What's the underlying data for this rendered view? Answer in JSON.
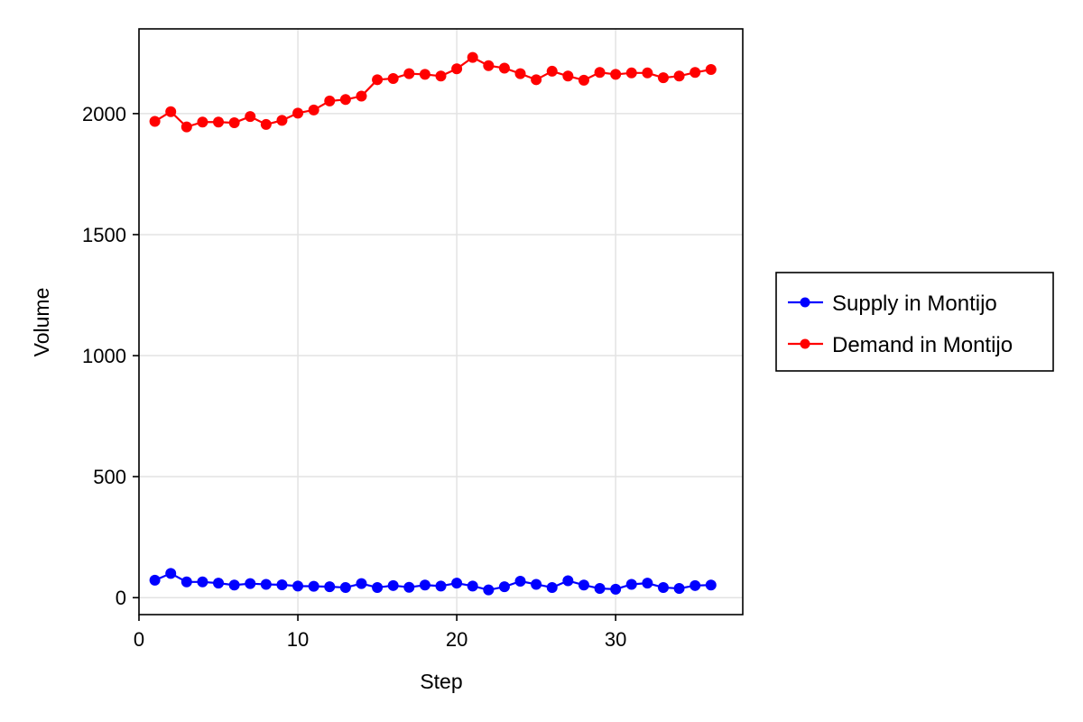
{
  "chart_data": {
    "type": "line",
    "xlabel": "Step",
    "ylabel": "Volume",
    "xlim": [
      0,
      38
    ],
    "ylim": [
      -70,
      2350
    ],
    "xticks": [
      0,
      10,
      20,
      30
    ],
    "yticks": [
      0,
      500,
      1000,
      1500,
      2000
    ],
    "grid": true,
    "legend_position": "right",
    "x": [
      1,
      2,
      3,
      4,
      5,
      6,
      7,
      8,
      9,
      10,
      11,
      12,
      13,
      14,
      15,
      16,
      17,
      18,
      19,
      20,
      21,
      22,
      23,
      24,
      25,
      26,
      27,
      28,
      29,
      30,
      31,
      32,
      33,
      34,
      35,
      36
    ],
    "series": [
      {
        "name": "Supply in Montijo",
        "color": "#0000ff",
        "values": [
          72,
          100,
          65,
          65,
          60,
          52,
          58,
          55,
          53,
          48,
          47,
          45,
          42,
          58,
          42,
          50,
          43,
          52,
          48,
          60,
          48,
          32,
          45,
          68,
          55,
          42,
          70,
          52,
          38,
          35,
          55,
          60,
          42,
          38,
          50,
          52
        ]
      },
      {
        "name": "Demand in Montijo",
        "color": "#ff0000",
        "values": [
          1968,
          2008,
          1945,
          1965,
          1965,
          1962,
          1988,
          1955,
          1972,
          2002,
          2015,
          2052,
          2058,
          2072,
          2140,
          2145,
          2165,
          2162,
          2155,
          2185,
          2232,
          2198,
          2188,
          2165,
          2140,
          2175,
          2155,
          2138,
          2170,
          2162,
          2168,
          2168,
          2148,
          2155,
          2170,
          2182
        ]
      }
    ]
  }
}
